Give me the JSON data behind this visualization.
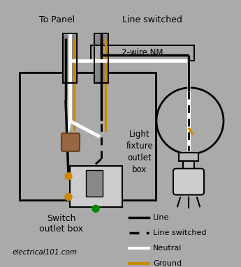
{
  "bg_color": "#aaaaaa",
  "title": "",
  "text_color": "#000000",
  "labels": {
    "to_panel": "To Panel",
    "line_switched": "Line switched",
    "wire_nm": "2-wire NM",
    "light_fixture": "Light\nfixture\noutlet\nbox",
    "switch_outlet": "Switch\noutlet box",
    "website": "electrical101.com",
    "legend_line": "Line",
    "legend_dashed": "Line switched",
    "legend_neutral": "Neutral",
    "legend_ground": "Ground"
  },
  "colors": {
    "black": "#000000",
    "white": "#ffffff",
    "yellow": "#ccaa00",
    "brown": "#996644",
    "green": "#008800",
    "orange_ground": "#cc8800",
    "gray": "#aaaaaa",
    "box_fill": "#aaaaaa",
    "box_border": "#000000"
  }
}
